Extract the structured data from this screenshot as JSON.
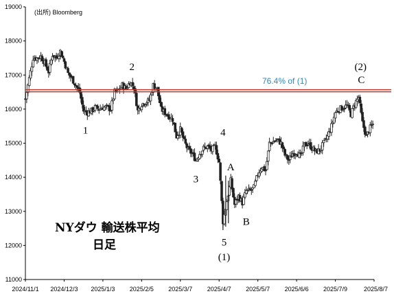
{
  "chart_data": {
    "type": "candlestick",
    "source": "(出所) Bloomberg",
    "title_lines": [
      "NYダウ 輸送株平均",
      "日足"
    ],
    "y_ticks": [
      11000,
      12000,
      13000,
      14000,
      15000,
      16000,
      17000,
      18000,
      19000
    ],
    "ylim": [
      11000,
      19000
    ],
    "x_tick_labels": [
      "2024/11/1",
      "2024/12/3",
      "2025/1/3",
      "2025/2/5",
      "2025/3/7",
      "2025/4/7",
      "2025/5/7",
      "2025/6/6",
      "2025/7/9",
      "2025/8/7"
    ],
    "reference_line": {
      "value": 16540,
      "label": "76.4% of (1)",
      "line_color": "#c0392b",
      "label_color": "#2e86c1"
    },
    "wave_labels": [
      {
        "text": "1",
        "x": 15.5,
        "y": 15280
      },
      {
        "text": "2",
        "x": 27.5,
        "y": 17150
      },
      {
        "text": "3",
        "x": 44.0,
        "y": 13850
      },
      {
        "text": "4",
        "x": 51.0,
        "y": 15220
      },
      {
        "text": "A",
        "x": 53.0,
        "y": 14200
      },
      {
        "text": "B",
        "x": 57.0,
        "y": 12600
      },
      {
        "text": "5",
        "x": 51.3,
        "y": 12000
      },
      {
        "text": "(1)",
        "x": 51.3,
        "y": 11560
      },
      {
        "text": "(2)",
        "x": 86.5,
        "y": 17150
      },
      {
        "text": "C",
        "x": 86.7,
        "y": 16760
      }
    ],
    "anchors": [
      {
        "x": 0,
        "c": 16300
      },
      {
        "x": 1,
        "c": 16900
      },
      {
        "x": 2,
        "c": 17500
      },
      {
        "x": 3,
        "c": 17500
      },
      {
        "x": 4,
        "c": 17550
      },
      {
        "x": 5,
        "c": 17350
      },
      {
        "x": 6,
        "c": 17100
      },
      {
        "x": 7,
        "c": 17600
      },
      {
        "x": 8,
        "c": 17500
      },
      {
        "x": 9,
        "c": 17700
      },
      {
        "x": 10,
        "c": 17400
      },
      {
        "x": 11,
        "c": 17050
      },
      {
        "x": 12,
        "c": 16900
      },
      {
        "x": 13,
        "c": 16700
      },
      {
        "x": 14,
        "c": 16500
      },
      {
        "x": 15,
        "c": 15950
      },
      {
        "x": 16,
        "c": 15900
      },
      {
        "x": 17,
        "c": 15950
      },
      {
        "x": 18,
        "c": 16050
      },
      {
        "x": 19,
        "c": 16000
      },
      {
        "x": 20,
        "c": 16050
      },
      {
        "x": 21,
        "c": 16050
      },
      {
        "x": 22,
        "c": 16000
      },
      {
        "x": 23,
        "c": 16500
      },
      {
        "x": 24,
        "c": 16550
      },
      {
        "x": 25,
        "c": 16700
      },
      {
        "x": 26,
        "c": 16600
      },
      {
        "x": 27,
        "c": 16800
      },
      {
        "x": 28,
        "c": 16650
      },
      {
        "x": 29,
        "c": 15950
      },
      {
        "x": 30,
        "c": 16150
      },
      {
        "x": 31,
        "c": 16200
      },
      {
        "x": 32,
        "c": 16250
      },
      {
        "x": 33,
        "c": 16700
      },
      {
        "x": 34,
        "c": 16600
      },
      {
        "x": 35,
        "c": 16000
      },
      {
        "x": 36,
        "c": 15900
      },
      {
        "x": 37,
        "c": 15800
      },
      {
        "x": 38,
        "c": 15700
      },
      {
        "x": 39,
        "c": 15200
      },
      {
        "x": 40,
        "c": 15400
      },
      {
        "x": 41,
        "c": 15050
      },
      {
        "x": 42,
        "c": 14800
      },
      {
        "x": 43,
        "c": 14700
      },
      {
        "x": 44,
        "c": 14500
      },
      {
        "x": 45,
        "c": 14700
      },
      {
        "x": 46,
        "c": 14850
      },
      {
        "x": 47,
        "c": 14900
      },
      {
        "x": 48,
        "c": 14800
      },
      {
        "x": 49,
        "c": 14900
      },
      {
        "x": 50,
        "c": 14450
      },
      {
        "x": 51,
        "c": 12700
      },
      {
        "x": 52,
        "c": 13300
      },
      {
        "x": 53,
        "c": 13900
      },
      {
        "x": 54,
        "c": 13200
      },
      {
        "x": 55,
        "c": 13450
      },
      {
        "x": 56,
        "c": 13250
      },
      {
        "x": 57,
        "c": 13600
      },
      {
        "x": 58,
        "c": 13600
      },
      {
        "x": 59,
        "c": 13700
      },
      {
        "x": 60,
        "c": 14100
      },
      {
        "x": 61,
        "c": 14300
      },
      {
        "x": 62,
        "c": 14200
      },
      {
        "x": 63,
        "c": 15000
      },
      {
        "x": 64,
        "c": 15050
      },
      {
        "x": 65,
        "c": 15100
      },
      {
        "x": 66,
        "c": 15000
      },
      {
        "x": 67,
        "c": 14650
      },
      {
        "x": 68,
        "c": 14500
      },
      {
        "x": 69,
        "c": 14700
      },
      {
        "x": 70,
        "c": 14750
      },
      {
        "x": 71,
        "c": 14600
      },
      {
        "x": 72,
        "c": 14950
      },
      {
        "x": 73,
        "c": 15000
      },
      {
        "x": 74,
        "c": 14850
      },
      {
        "x": 75,
        "c": 14750
      },
      {
        "x": 76,
        "c": 14800
      },
      {
        "x": 77,
        "c": 15000
      },
      {
        "x": 78,
        "c": 15200
      },
      {
        "x": 79,
        "c": 15500
      },
      {
        "x": 80,
        "c": 15900
      },
      {
        "x": 81,
        "c": 16000
      },
      {
        "x": 82,
        "c": 16050
      },
      {
        "x": 83,
        "c": 16100
      },
      {
        "x": 84,
        "c": 15850
      },
      {
        "x": 85,
        "c": 16150
      },
      {
        "x": 86,
        "c": 16350
      },
      {
        "x": 87,
        "c": 15600
      },
      {
        "x": 88,
        "c": 15200
      },
      {
        "x": 89,
        "c": 15450
      },
      {
        "x": 90,
        "c": 15600
      }
    ]
  }
}
